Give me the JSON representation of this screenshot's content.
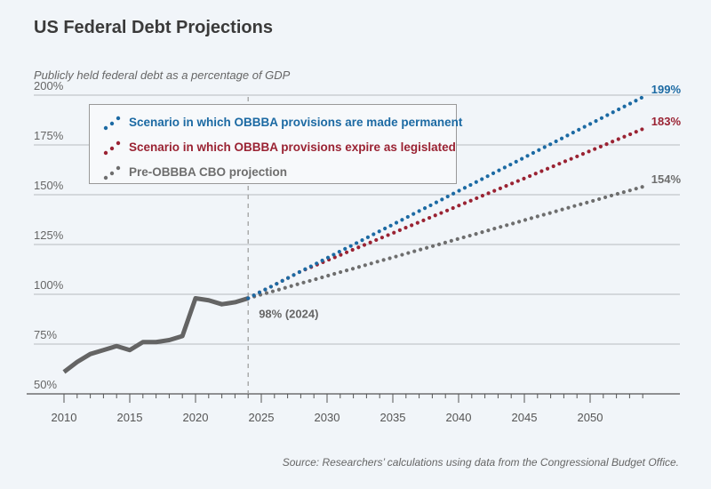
{
  "chart_data": {
    "type": "line",
    "title": "US Federal Debt Projections",
    "subtitle": "Publicly held federal debt as a percentage of GDP",
    "source": "Source: Researchers’ calculations using data from the Congressional Budget Office.",
    "xlim": [
      2010,
      2054
    ],
    "ylim": [
      50,
      200
    ],
    "x_ticks": [
      2010,
      2015,
      2020,
      2025,
      2030,
      2035,
      2040,
      2045,
      2050
    ],
    "x_tick_labels": [
      "2010",
      "2015",
      "2020",
      "2025",
      "2030",
      "2035",
      "2040",
      "2045",
      "2050"
    ],
    "y_ticks": [
      50,
      75,
      100,
      125,
      150,
      175,
      200
    ],
    "y_tick_labels": [
      "50%",
      "75%",
      "100%",
      "125%",
      "150%",
      "175%",
      "200%"
    ],
    "grid": "horizontal",
    "legend_placement": "top-left",
    "vertical_marker": {
      "x": 2024,
      "label": "98% (2024)"
    },
    "historical": {
      "color": "#646464",
      "x": [
        2010,
        2011,
        2012,
        2013,
        2014,
        2015,
        2016,
        2017,
        2018,
        2019,
        2020,
        2021,
        2022,
        2023,
        2024
      ],
      "y": [
        61,
        66,
        70,
        72,
        74,
        72,
        76,
        76,
        77,
        79,
        98,
        97,
        95,
        96,
        98
      ]
    },
    "series": [
      {
        "name": "Scenario in which OBBBA provisions are made permanent",
        "color": "#1c6aa3",
        "end_label": "199%",
        "x_start": 2024,
        "y": [
          98,
          101.4,
          104.7,
          108.1,
          111.5,
          114.8,
          118.2,
          121.6,
          124.9,
          128.3,
          131.7,
          135.0,
          138.4,
          141.8,
          145.1,
          148.5,
          151.9,
          155.2,
          158.6,
          162.0,
          165.3,
          168.7,
          172.1,
          175.4,
          178.8,
          182.2,
          185.5,
          188.9,
          192.3,
          195.6,
          199
        ]
      },
      {
        "name": "Scenario in which OBBBA provisions expire as legislated",
        "color": "#9a2333",
        "end_label": "183%",
        "x_start": 2024,
        "y": [
          98,
          101.4,
          104.7,
          108.1,
          111.5,
          114.2,
          117.0,
          119.7,
          122.5,
          125.2,
          128.0,
          130.7,
          133.5,
          136.2,
          139.0,
          141.7,
          144.5,
          147.2,
          150.0,
          152.7,
          155.5,
          158.2,
          161.0,
          163.7,
          166.5,
          169.2,
          172.0,
          174.7,
          177.5,
          180.2,
          183
        ]
      },
      {
        "name": "Pre-OBBBA CBO projection",
        "color": "#6e6e6e",
        "end_label": "154%",
        "x_start": 2024,
        "y": [
          98,
          99.9,
          101.7,
          103.6,
          105.5,
          107.3,
          109.2,
          111.1,
          112.9,
          114.8,
          116.7,
          118.5,
          120.4,
          122.3,
          124.1,
          126.0,
          127.9,
          129.7,
          131.6,
          133.5,
          135.3,
          137.2,
          139.1,
          140.9,
          142.8,
          144.7,
          146.5,
          148.4,
          150.3,
          152.1,
          154
        ]
      }
    ]
  }
}
